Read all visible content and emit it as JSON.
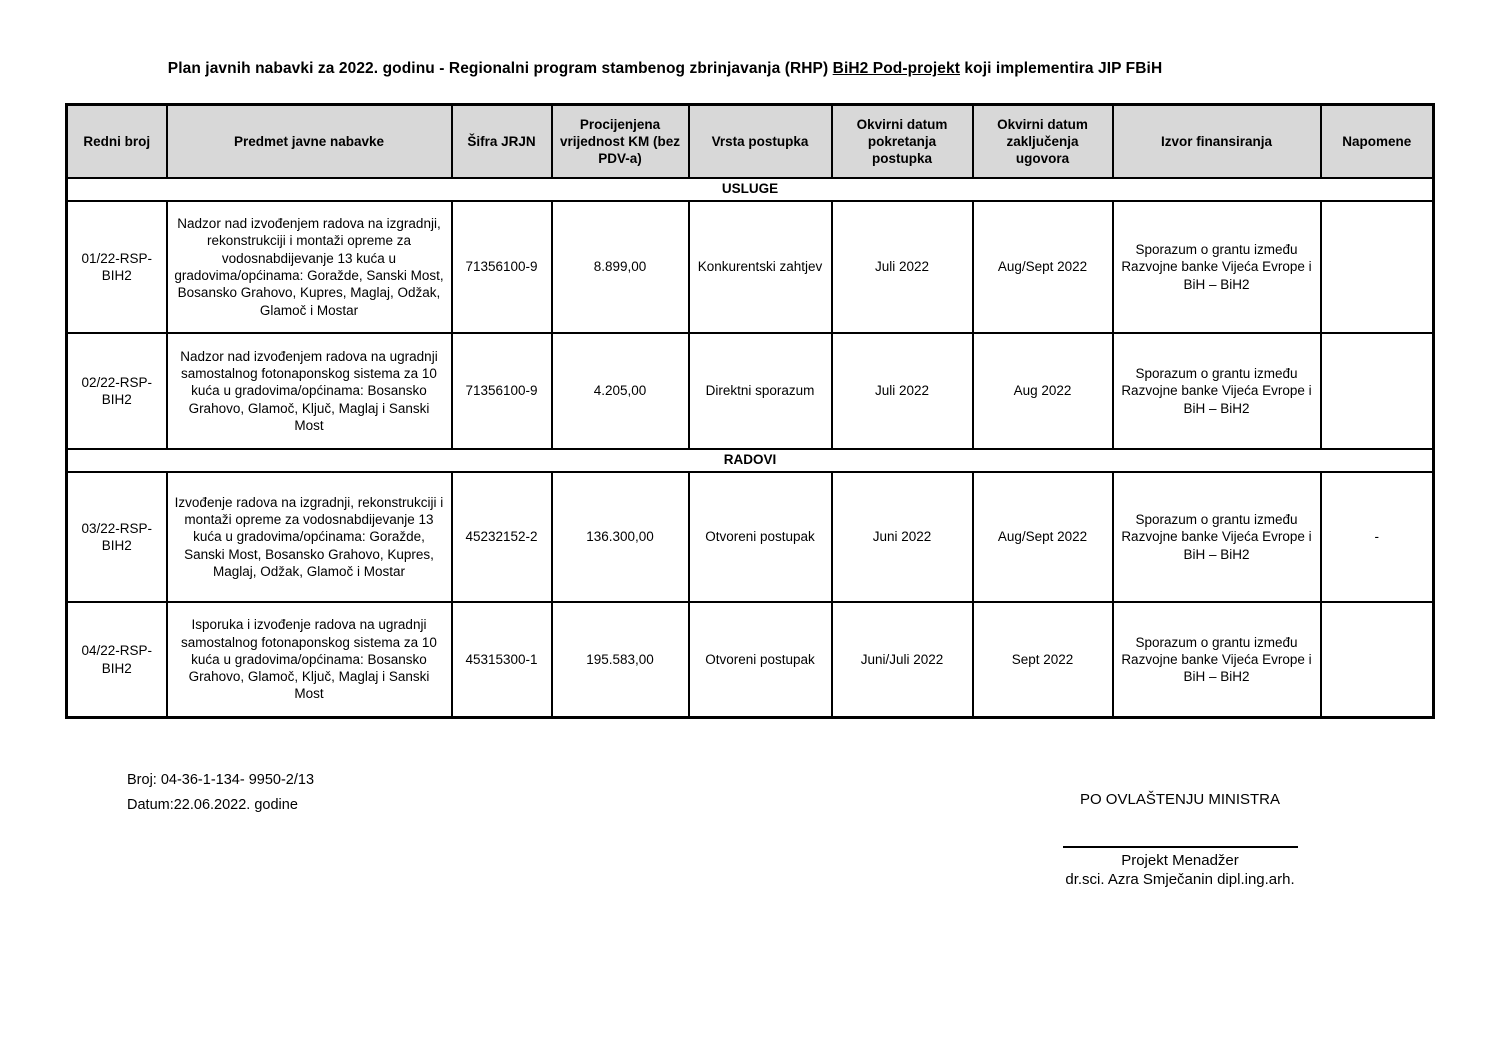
{
  "title": {
    "prefix": "Plan javnih nabavki za 2022. godinu - Regionalni program stambenog zbrinjavanja (RHP) ",
    "underlined": "BiH2 Pod-projekt",
    "suffix": " koji implementira JIP FBiH"
  },
  "table": {
    "columns": [
      "Redni broj",
      "Predmet javne nabavke",
      "Šifra JRJN",
      "Procijenjena vrijednost KM (bez PDV-a)",
      "Vrsta postupka",
      "Okvirni datum pokretanja postupka",
      "Okvirni datum zaključenja ugovora",
      "Izvor finansiranja",
      "Napomene"
    ],
    "sections": [
      {
        "label": "USLUGE",
        "rows": [
          {
            "cells": [
              "01/22-RSP-BIH2",
              "Nadzor nad izvođenjem radova na izgradnji, rekonstrukciji i montaži opreme za vodosnabdijevanje 13 kuća u gradovima/općinama: Goražde, Sanski Most, Bosansko Grahovo, Kupres, Maglaj, Odžak, Glamoč i Mostar",
              "71356100-9",
              "8.899,00",
              "Konkurentski zahtjev",
              "Juli 2022",
              "Aug/Sept 2022",
              "Sporazum o grantu između Razvojne banke Vijeća Evrope i BiH – BiH2",
              ""
            ]
          },
          {
            "cells": [
              "02/22-RSP-BIH2",
              "Nadzor nad izvođenjem radova na ugradnji samostalnog fotonaponskog sistema za 10 kuća u gradovima/općinama: Bosansko Grahovo, Glamoč, Ključ, Maglaj i Sanski Most",
              "71356100-9",
              "4.205,00",
              "Direktni sporazum",
              "Juli 2022",
              "Aug 2022",
              "Sporazum o grantu između Razvojne banke Vijeća Evrope i BiH – BiH2",
              ""
            ]
          }
        ]
      },
      {
        "label": "RADOVI",
        "rows": [
          {
            "cells": [
              "03/22-RSP-BIH2",
              "Izvođenje radova na izgradnji, rekonstrukciji i montaži opreme za vodosnabdijevanje 13 kuća u gradovima/općinama: Goražde, Sanski Most, Bosansko Grahovo, Kupres, Maglaj, Odžak, Glamoč i Mostar",
              "45232152-2",
              "136.300,00",
              "Otvoreni postupak",
              "Juni 2022",
              "Aug/Sept 2022",
              "Sporazum o grantu između Razvojne banke Vijeća Evrope i BiH – BiH2",
              "-"
            ]
          },
          {
            "cells": [
              "04/22-RSP-BIH2",
              "Isporuka i izvođenje radova na ugradnji samostalnog fotonaponskog sistema za 10 kuća u gradovima/općinama: Bosansko Grahovo, Glamoč, Ključ, Maglaj i Sanski Most",
              "45315300-1",
              "195.583,00",
              "Otvoreni postupak",
              "Juni/Juli 2022",
              "Sept 2022",
              "Sporazum o grantu između Razvojne banke Vijeća Evrope i BiH – BiH2",
              ""
            ]
          }
        ]
      }
    ]
  },
  "footer": {
    "broj": "Broj: 04-36-1-134- 9950-2/13",
    "datum": "Datum:22.06.2022. godine",
    "authority": "PO OVLAŠTENJU  MINISTRA",
    "role": "Projekt Menadžer",
    "signer": "dr.sci. Azra Smječanin dipl.ing.arh."
  }
}
